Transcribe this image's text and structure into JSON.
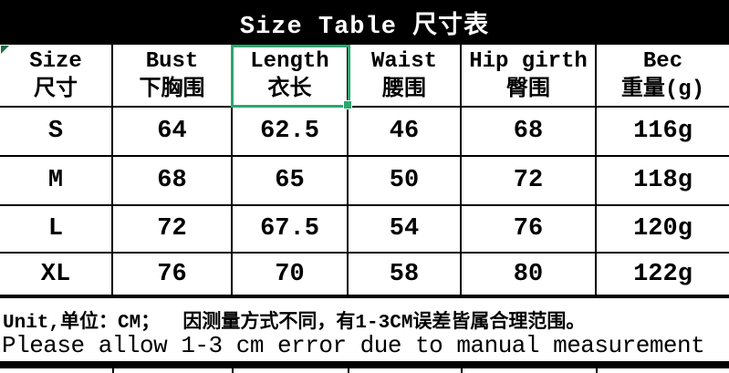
{
  "title": "Size Table 尺寸表",
  "colors": {
    "bar_black": "#000000",
    "selection_green": "#2aa770",
    "corner_marker_green": "#1d6f42"
  },
  "table": {
    "columns": [
      {
        "en": "Size",
        "zh": "尺寸"
      },
      {
        "en": "Bust",
        "zh": "下胸围"
      },
      {
        "en": "Length",
        "zh": "衣长"
      },
      {
        "en": "Waist",
        "zh": "腰围"
      },
      {
        "en": "Hip girth",
        "zh": "臀围"
      },
      {
        "en": "Bec",
        "zh": "重量(g)"
      }
    ],
    "rows": [
      {
        "cells": [
          "S",
          "64",
          "62.5",
          "46",
          "68",
          "116g"
        ]
      },
      {
        "cells": [
          "M",
          "68",
          "65",
          "50",
          "72",
          "118g"
        ]
      },
      {
        "cells": [
          "L",
          "72",
          "67.5",
          "54",
          "76",
          "120g"
        ]
      },
      {
        "cells": [
          "XL",
          "76",
          "70",
          "58",
          "80",
          "122g"
        ]
      }
    ],
    "selected_header": "Length 衣长"
  },
  "footer": {
    "unit_note": "Unit,单位：CM；  因测量方式不同，有1-3CM误差皆属合理范围。",
    "measure_note": "Please allow 1-3 cm error due to manual measurement"
  }
}
